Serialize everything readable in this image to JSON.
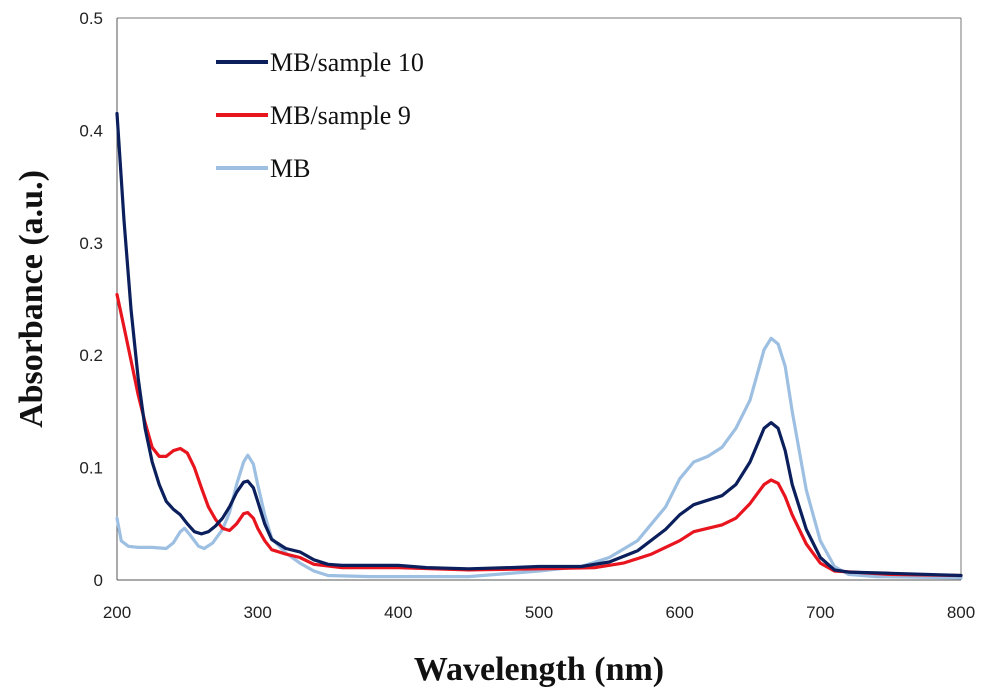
{
  "chart_data": {
    "type": "line",
    "title": "",
    "xlabel": "Wavelength (nm)",
    "ylabel": "Absorbance (a.u.)",
    "xlim": [
      200,
      800
    ],
    "ylim": [
      0,
      0.5
    ],
    "x_ticks": [
      "200",
      "300",
      "400",
      "500",
      "600",
      "700",
      "800"
    ],
    "y_ticks": [
      "0",
      "0.1",
      "0.2",
      "0.3",
      "0.4",
      "0.5"
    ],
    "legend_position": "top-left",
    "grid": false,
    "series": [
      {
        "name": "MB/sample 10",
        "color": "#0b1f5c",
        "points": [
          [
            200,
            0.415
          ],
          [
            205,
            0.32
          ],
          [
            210,
            0.24
          ],
          [
            215,
            0.18
          ],
          [
            220,
            0.135
          ],
          [
            225,
            0.105
          ],
          [
            230,
            0.085
          ],
          [
            235,
            0.07
          ],
          [
            240,
            0.063
          ],
          [
            245,
            0.058
          ],
          [
            250,
            0.05
          ],
          [
            255,
            0.043
          ],
          [
            260,
            0.041
          ],
          [
            265,
            0.043
          ],
          [
            270,
            0.048
          ],
          [
            275,
            0.055
          ],
          [
            280,
            0.065
          ],
          [
            285,
            0.078
          ],
          [
            290,
            0.087
          ],
          [
            293,
            0.088
          ],
          [
            297,
            0.082
          ],
          [
            300,
            0.07
          ],
          [
            305,
            0.05
          ],
          [
            310,
            0.036
          ],
          [
            320,
            0.028
          ],
          [
            330,
            0.025
          ],
          [
            340,
            0.018
          ],
          [
            350,
            0.014
          ],
          [
            360,
            0.013
          ],
          [
            380,
            0.013
          ],
          [
            400,
            0.013
          ],
          [
            420,
            0.011
          ],
          [
            450,
            0.01
          ],
          [
            480,
            0.011
          ],
          [
            500,
            0.012
          ],
          [
            530,
            0.012
          ],
          [
            550,
            0.016
          ],
          [
            570,
            0.026
          ],
          [
            590,
            0.045
          ],
          [
            600,
            0.058
          ],
          [
            610,
            0.067
          ],
          [
            620,
            0.071
          ],
          [
            630,
            0.075
          ],
          [
            640,
            0.085
          ],
          [
            650,
            0.105
          ],
          [
            660,
            0.135
          ],
          [
            665,
            0.14
          ],
          [
            670,
            0.135
          ],
          [
            675,
            0.115
          ],
          [
            680,
            0.085
          ],
          [
            690,
            0.045
          ],
          [
            700,
            0.02
          ],
          [
            710,
            0.009
          ],
          [
            720,
            0.007
          ],
          [
            750,
            0.006
          ],
          [
            800,
            0.004
          ]
        ]
      },
      {
        "name": "MB/sample 9",
        "color": "#e8141e",
        "points": [
          [
            200,
            0.254
          ],
          [
            205,
            0.225
          ],
          [
            210,
            0.195
          ],
          [
            215,
            0.165
          ],
          [
            220,
            0.14
          ],
          [
            225,
            0.118
          ],
          [
            230,
            0.11
          ],
          [
            235,
            0.11
          ],
          [
            240,
            0.115
          ],
          [
            245,
            0.117
          ],
          [
            250,
            0.113
          ],
          [
            255,
            0.1
          ],
          [
            260,
            0.082
          ],
          [
            265,
            0.065
          ],
          [
            270,
            0.054
          ],
          [
            275,
            0.046
          ],
          [
            280,
            0.044
          ],
          [
            285,
            0.05
          ],
          [
            290,
            0.059
          ],
          [
            293,
            0.06
          ],
          [
            297,
            0.055
          ],
          [
            300,
            0.046
          ],
          [
            305,
            0.035
          ],
          [
            310,
            0.027
          ],
          [
            320,
            0.023
          ],
          [
            330,
            0.02
          ],
          [
            340,
            0.014
          ],
          [
            360,
            0.011
          ],
          [
            400,
            0.011
          ],
          [
            450,
            0.009
          ],
          [
            500,
            0.01
          ],
          [
            540,
            0.011
          ],
          [
            560,
            0.015
          ],
          [
            580,
            0.023
          ],
          [
            600,
            0.035
          ],
          [
            610,
            0.043
          ],
          [
            620,
            0.046
          ],
          [
            630,
            0.049
          ],
          [
            640,
            0.055
          ],
          [
            650,
            0.068
          ],
          [
            660,
            0.085
          ],
          [
            665,
            0.089
          ],
          [
            670,
            0.086
          ],
          [
            675,
            0.074
          ],
          [
            680,
            0.058
          ],
          [
            690,
            0.032
          ],
          [
            700,
            0.015
          ],
          [
            710,
            0.008
          ],
          [
            750,
            0.005
          ],
          [
            800,
            0.004
          ]
        ]
      },
      {
        "name": "MB",
        "color": "#9dbfe2",
        "points": [
          [
            200,
            0.055
          ],
          [
            203,
            0.035
          ],
          [
            208,
            0.03
          ],
          [
            215,
            0.029
          ],
          [
            225,
            0.029
          ],
          [
            235,
            0.028
          ],
          [
            240,
            0.033
          ],
          [
            245,
            0.043
          ],
          [
            248,
            0.046
          ],
          [
            252,
            0.04
          ],
          [
            258,
            0.03
          ],
          [
            262,
            0.028
          ],
          [
            268,
            0.033
          ],
          [
            275,
            0.045
          ],
          [
            280,
            0.06
          ],
          [
            285,
            0.085
          ],
          [
            290,
            0.105
          ],
          [
            293,
            0.111
          ],
          [
            297,
            0.103
          ],
          [
            300,
            0.085
          ],
          [
            305,
            0.058
          ],
          [
            310,
            0.037
          ],
          [
            320,
            0.024
          ],
          [
            330,
            0.015
          ],
          [
            340,
            0.008
          ],
          [
            350,
            0.004
          ],
          [
            380,
            0.003
          ],
          [
            450,
            0.003
          ],
          [
            500,
            0.008
          ],
          [
            530,
            0.012
          ],
          [
            550,
            0.02
          ],
          [
            570,
            0.035
          ],
          [
            590,
            0.065
          ],
          [
            600,
            0.09
          ],
          [
            610,
            0.105
          ],
          [
            620,
            0.11
          ],
          [
            630,
            0.118
          ],
          [
            640,
            0.135
          ],
          [
            650,
            0.16
          ],
          [
            660,
            0.205
          ],
          [
            665,
            0.215
          ],
          [
            670,
            0.21
          ],
          [
            675,
            0.19
          ],
          [
            680,
            0.15
          ],
          [
            690,
            0.08
          ],
          [
            700,
            0.035
          ],
          [
            710,
            0.012
          ],
          [
            720,
            0.005
          ],
          [
            740,
            0.003
          ],
          [
            800,
            0.002
          ]
        ]
      }
    ]
  }
}
